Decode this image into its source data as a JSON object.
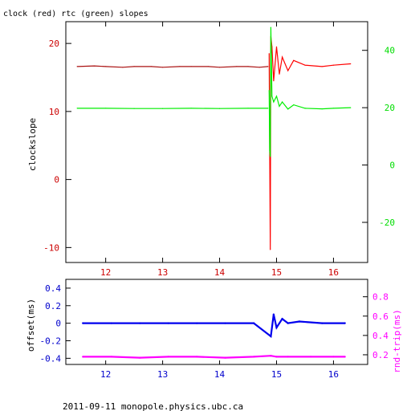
{
  "title": "clock (red) rtc (green) slopes",
  "footer": "2011-09-11 monopole.physics.ubc.ca",
  "colors": {
    "clock": "#ff0000",
    "clock_dark": "#aa1111",
    "rtc": "#00ee00",
    "offset": "#0000ee",
    "rndtrip": "#ff00ff",
    "left_axis_top": "#cc0000",
    "right_axis_top": "#00dd00",
    "left_axis_bottom": "#0000cc",
    "right_axis_bottom": "#ff00ff",
    "frame": "#000000"
  },
  "chart_data": [
    {
      "type": "line",
      "name": "slopes",
      "xlim": [
        11.3,
        16.6
      ],
      "x_ticks": [
        12,
        13,
        14,
        15,
        16
      ],
      "ylabel": "clockslope",
      "ylim": [
        -12.2,
        23.2
      ],
      "y_ticks": [
        -10,
        0,
        10,
        20
      ],
      "ylim_right": [
        -34,
        50
      ],
      "y_ticks_right": [
        -20,
        0,
        20,
        40
      ],
      "series": [
        {
          "axis": "left",
          "x": [
            11.5,
            11.8,
            12.0,
            12.3,
            12.5,
            12.8,
            13.0,
            13.3,
            13.5,
            13.8,
            14.0,
            14.3,
            14.5,
            14.7,
            14.85
          ],
          "values": [
            16.6,
            16.7,
            16.6,
            16.5,
            16.6,
            16.6,
            16.5,
            16.6,
            16.6,
            16.6,
            16.5,
            16.6,
            16.6,
            16.5,
            16.6
          ]
        },
        {
          "axis": "left",
          "x": [
            14.87,
            14.88,
            14.89,
            14.9,
            14.92,
            14.95,
            15.0,
            15.05,
            15.1,
            15.2,
            15.3,
            15.5,
            15.8,
            16.0,
            16.3
          ],
          "values": [
            18.5,
            4.0,
            -10.3,
            21.0,
            19.5,
            14.5,
            19.5,
            15.5,
            18.0,
            16.0,
            17.5,
            16.8,
            16.6,
            16.8,
            17.0
          ]
        },
        {
          "axis": "right",
          "x": [
            11.5,
            12.0,
            12.5,
            13.0,
            13.5,
            14.0,
            14.5,
            14.85
          ],
          "values": [
            19.8,
            19.8,
            19.7,
            19.7,
            19.8,
            19.7,
            19.8,
            19.8
          ]
        },
        {
          "axis": "right",
          "x": [
            14.87,
            14.88,
            14.89,
            14.9,
            14.92,
            14.95,
            15.0,
            15.05,
            15.1,
            15.2,
            15.3,
            15.5,
            15.8,
            16.0,
            16.3
          ],
          "values": [
            26.0,
            5.0,
            3.0,
            48.0,
            24.0,
            22.0,
            24.0,
            20.5,
            22.0,
            19.5,
            21.0,
            19.8,
            19.6,
            19.8,
            20.0
          ]
        }
      ]
    },
    {
      "type": "scatter",
      "name": "offset and round trip",
      "xlim": [
        11.3,
        16.6
      ],
      "x_ticks": [
        12,
        13,
        14,
        15,
        16
      ],
      "ylabel": "offset(ms)",
      "ylim": [
        -0.47,
        0.5
      ],
      "y_ticks": [
        -0.4,
        -0.2,
        0,
        0.2,
        0.4
      ],
      "ylabel_right": "rnd-trip(ms)",
      "ylim_right": [
        0.1,
        0.98
      ],
      "y_ticks_right": [
        0.2,
        0.4,
        0.6,
        0.8
      ],
      "series": [
        {
          "axis": "left",
          "x": [
            11.6,
            12.1,
            12.6,
            13.1,
            13.6,
            14.1,
            14.6,
            14.9,
            14.95,
            15.0,
            15.1,
            15.2,
            15.4,
            15.8,
            16.2
          ],
          "values": [
            0.0,
            0.0,
            0.0,
            0.0,
            0.0,
            0.0,
            0.0,
            -0.15,
            0.1,
            -0.05,
            0.05,
            0.0,
            0.02,
            0.0,
            0.0
          ]
        },
        {
          "axis": "right",
          "x": [
            11.6,
            12.1,
            12.6,
            13.1,
            13.6,
            14.1,
            14.6,
            14.9,
            15.0,
            15.2,
            15.6,
            16.0,
            16.2
          ],
          "values": [
            0.18,
            0.18,
            0.17,
            0.18,
            0.18,
            0.17,
            0.18,
            0.19,
            0.18,
            0.18,
            0.18,
            0.18,
            0.18
          ]
        }
      ]
    }
  ]
}
